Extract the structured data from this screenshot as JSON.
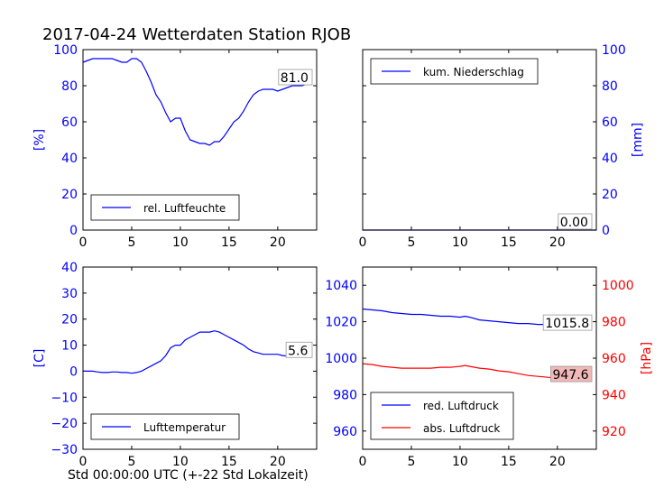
{
  "title": "2017-04-24 Wetterdaten Station RJOB",
  "footer_xlabel": "Std 00:00:00 UTC (+-22 Std Lokalzeit)",
  "colors": {
    "blue": "#0000ff",
    "red": "#ff0000",
    "label_box_red": "#f2b8b8"
  },
  "chart_data": [
    {
      "id": "humidity",
      "type": "line",
      "ylabel": "[%]",
      "xlim": [
        0,
        24
      ],
      "ylim": [
        0,
        100
      ],
      "xticks": [
        0,
        5,
        10,
        15,
        20
      ],
      "yticks": [
        0,
        20,
        40,
        60,
        80,
        100
      ],
      "legend": "lower-left",
      "series": [
        {
          "name": "rel. Luftfeuchte",
          "color": "#0000ff",
          "x": [
            0,
            0.5,
            1,
            1.5,
            2,
            2.5,
            3,
            3.5,
            4,
            4.5,
            5,
            5.5,
            6,
            6.5,
            7,
            7.5,
            8,
            8.5,
            9,
            9.5,
            10,
            10.5,
            11,
            11.5,
            12,
            12.5,
            13,
            13.5,
            14,
            14.5,
            15,
            15.5,
            16,
            16.5,
            17,
            17.5,
            18,
            18.5,
            19,
            19.5,
            20,
            20.5,
            21,
            21.5,
            22,
            22.5,
            23,
            23.5
          ],
          "y": [
            93,
            94,
            95,
            95,
            95,
            95,
            95,
            94,
            93,
            93,
            95,
            95,
            93,
            88,
            82,
            75,
            71,
            65,
            60,
            62,
            62,
            55,
            50,
            49,
            48,
            48,
            47,
            49,
            49,
            52,
            56,
            60,
            62,
            66,
            71,
            75,
            77,
            78,
            78,
            78,
            77,
            78,
            79,
            80,
            80,
            80,
            81,
            81
          ]
        }
      ],
      "end_label": "81.0"
    },
    {
      "id": "precipitation",
      "type": "line",
      "ylabel": "[mm]",
      "xlim": [
        0,
        24
      ],
      "ylim": [
        0,
        100
      ],
      "xticks": [
        0,
        5,
        10,
        15,
        20
      ],
      "yticks": [
        0,
        20,
        40,
        60,
        80,
        100
      ],
      "legend": "upper-left",
      "series": [
        {
          "name": "kum. Niederschlag",
          "color": "#0000ff",
          "x": [
            0,
            24
          ],
          "y": [
            0,
            0
          ]
        }
      ],
      "end_label": "0.00"
    },
    {
      "id": "temperature",
      "type": "line",
      "ylabel": "[C]",
      "xlim": [
        0,
        24
      ],
      "ylim": [
        -30,
        40
      ],
      "xticks": [
        0,
        5,
        10,
        15,
        20
      ],
      "yticks": [
        -30,
        -20,
        -10,
        0,
        10,
        20,
        30,
        40
      ],
      "legend": "lower-left",
      "series": [
        {
          "name": "Lufttemperatur",
          "color": "#0000ff",
          "x": [
            0,
            0.5,
            1,
            1.5,
            2,
            2.5,
            3,
            3.5,
            4,
            4.5,
            5,
            5.5,
            6,
            6.5,
            7,
            7.5,
            8,
            8.5,
            9,
            9.5,
            10,
            10.5,
            11,
            11.5,
            12,
            12.5,
            13,
            13.5,
            14,
            14.5,
            15,
            15.5,
            16,
            16.5,
            17,
            17.5,
            18,
            18.5,
            19,
            19.5,
            20,
            20.5,
            21,
            21.5,
            22,
            22.5,
            23,
            23.5
          ],
          "y": [
            0,
            0,
            0,
            -0.3,
            -0.5,
            -0.5,
            -0.3,
            -0.3,
            -0.5,
            -0.5,
            -0.8,
            -0.5,
            0,
            1,
            2,
            3,
            4,
            6,
            9,
            10,
            10,
            12,
            13,
            14,
            15,
            15,
            15,
            15.5,
            15,
            14,
            13,
            12,
            11,
            10,
            8.5,
            7.5,
            7,
            6.5,
            6.5,
            6.5,
            6.5,
            6,
            5.8,
            5.7,
            5.6,
            5.6,
            5.6,
            5.6
          ]
        }
      ],
      "end_label": "5.6"
    },
    {
      "id": "pressure",
      "type": "line",
      "ylabel_right": "[hPa]",
      "xlim": [
        0,
        24
      ],
      "ylim_left": [
        950,
        1050
      ],
      "yticks_left": [
        960,
        980,
        1000,
        1020,
        1040
      ],
      "ylim_right": [
        910,
        1010
      ],
      "yticks_right": [
        920,
        940,
        960,
        980,
        1000
      ],
      "xticks": [
        0,
        5,
        10,
        15,
        20
      ],
      "legend": "lower-left",
      "series": [
        {
          "name": "red. Luftdruck",
          "color": "#0000ff",
          "axis": "left",
          "x": [
            0,
            1,
            2,
            3,
            4,
            5,
            6,
            7,
            8,
            9,
            10,
            10.5,
            11,
            12,
            13,
            14,
            15,
            16,
            17,
            18,
            19,
            20,
            21,
            22,
            23,
            23.5
          ],
          "y": [
            1027,
            1026.5,
            1026,
            1025,
            1024.5,
            1024,
            1024,
            1023.5,
            1023,
            1023,
            1022.5,
            1023,
            1022.5,
            1021,
            1020.5,
            1020,
            1019.5,
            1019,
            1019,
            1018.5,
            1018.5,
            1018,
            1017.5,
            1017,
            1016.5,
            1015.8
          ]
        },
        {
          "name": "abs. Luftdruck",
          "color": "#ff0000",
          "axis": "right",
          "x": [
            0,
            1,
            2,
            3,
            4,
            5,
            6,
            7,
            8,
            9,
            10,
            10.5,
            11,
            12,
            13,
            14,
            15,
            16,
            17,
            18,
            19,
            20,
            21,
            22,
            23,
            23.5
          ],
          "y": [
            957,
            956.5,
            955.5,
            955,
            954.5,
            954.5,
            954.5,
            954.5,
            955,
            955,
            955.5,
            956,
            955.5,
            954.5,
            954,
            953,
            952.5,
            951.5,
            950.5,
            950,
            949.5,
            949,
            948.5,
            948,
            947.8,
            947.6
          ]
        }
      ],
      "end_labels": [
        "1015.8",
        "947.6"
      ]
    }
  ]
}
